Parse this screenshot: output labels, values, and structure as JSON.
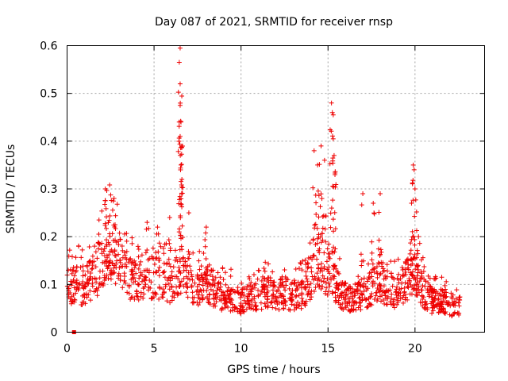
{
  "chart_data": {
    "type": "scatter",
    "title": "Day 087 of 2021, SRMTID for receiver rnsp",
    "xlabel": "GPS time / hours",
    "ylabel": "SRMTID / TECUs",
    "xlim": [
      0,
      24
    ],
    "ylim": [
      0,
      0.6
    ],
    "x_ticks": [
      0,
      5,
      10,
      15,
      20
    ],
    "x_tick_labels": [
      "0",
      "5",
      "10",
      "15",
      "20"
    ],
    "y_ticks": [
      0,
      0.1,
      0.2,
      0.3,
      0.4,
      0.5,
      0.6
    ],
    "y_tick_labels": [
      "0",
      "0.1",
      "0.2",
      "0.3",
      "0.4",
      "0.5",
      "0.6"
    ],
    "grid": true,
    "marker": "+",
    "color": "#ee0000",
    "isolated_square_marker": {
      "x": 0.4,
      "y": 0.0
    },
    "profile": [
      [
        0.0,
        0.1
      ],
      [
        0.5,
        0.11
      ],
      [
        1.0,
        0.1
      ],
      [
        1.5,
        0.13
      ],
      [
        2.0,
        0.15
      ],
      [
        2.3,
        0.2
      ],
      [
        2.7,
        0.18
      ],
      [
        3.0,
        0.15
      ],
      [
        3.5,
        0.12
      ],
      [
        4.0,
        0.12
      ],
      [
        4.5,
        0.13
      ],
      [
        5.0,
        0.12
      ],
      [
        5.5,
        0.12
      ],
      [
        6.0,
        0.11
      ],
      [
        6.5,
        0.13
      ],
      [
        7.0,
        0.11
      ],
      [
        7.5,
        0.1
      ],
      [
        8.0,
        0.12
      ],
      [
        8.5,
        0.09
      ],
      [
        9.0,
        0.08
      ],
      [
        9.5,
        0.08
      ],
      [
        10.0,
        0.07
      ],
      [
        10.5,
        0.08
      ],
      [
        11.0,
        0.08
      ],
      [
        11.5,
        0.09
      ],
      [
        12.0,
        0.08
      ],
      [
        12.5,
        0.09
      ],
      [
        13.0,
        0.08
      ],
      [
        13.5,
        0.09
      ],
      [
        14.0,
        0.12
      ],
      [
        14.5,
        0.16
      ],
      [
        15.0,
        0.14
      ],
      [
        15.5,
        0.1
      ],
      [
        16.0,
        0.08
      ],
      [
        16.5,
        0.07
      ],
      [
        17.0,
        0.09
      ],
      [
        17.5,
        0.1
      ],
      [
        18.0,
        0.12
      ],
      [
        18.5,
        0.09
      ],
      [
        19.0,
        0.09
      ],
      [
        19.5,
        0.12
      ],
      [
        20.0,
        0.13
      ],
      [
        20.5,
        0.09
      ],
      [
        21.0,
        0.07
      ],
      [
        21.5,
        0.07
      ],
      [
        22.0,
        0.06
      ],
      [
        22.6,
        0.06
      ]
    ],
    "peaks": [
      {
        "x": 2.2,
        "y": 0.3
      },
      {
        "x": 2.7,
        "y": 0.28
      },
      {
        "x": 4.6,
        "y": 0.23
      },
      {
        "x": 5.2,
        "y": 0.22
      },
      {
        "x": 5.9,
        "y": 0.24
      },
      {
        "x": 6.5,
        "y": 0.595
      },
      {
        "x": 6.45,
        "y": 0.565
      },
      {
        "x": 6.5,
        "y": 0.52
      },
      {
        "x": 6.5,
        "y": 0.475
      },
      {
        "x": 6.55,
        "y": 0.44
      },
      {
        "x": 6.5,
        "y": 0.41
      },
      {
        "x": 6.55,
        "y": 0.35
      },
      {
        "x": 6.6,
        "y": 0.32
      },
      {
        "x": 7.0,
        "y": 0.25
      },
      {
        "x": 8.0,
        "y": 0.22
      },
      {
        "x": 14.2,
        "y": 0.38
      },
      {
        "x": 14.4,
        "y": 0.35
      },
      {
        "x": 14.6,
        "y": 0.39
      },
      {
        "x": 14.8,
        "y": 0.36
      },
      {
        "x": 15.2,
        "y": 0.48
      },
      {
        "x": 15.25,
        "y": 0.46
      },
      {
        "x": 15.3,
        "y": 0.455
      },
      {
        "x": 15.35,
        "y": 0.37
      },
      {
        "x": 15.4,
        "y": 0.33
      },
      {
        "x": 17.0,
        "y": 0.29
      },
      {
        "x": 17.6,
        "y": 0.27
      },
      {
        "x": 18.0,
        "y": 0.29
      },
      {
        "x": 19.9,
        "y": 0.35
      },
      {
        "x": 19.95,
        "y": 0.34
      },
      {
        "x": 20.0,
        "y": 0.3
      },
      {
        "x": 19.8,
        "y": 0.27
      },
      {
        "x": 20.2,
        "y": 0.2
      }
    ]
  }
}
